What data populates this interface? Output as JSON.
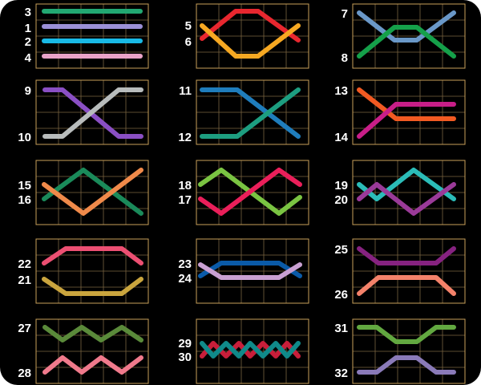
{
  "palette": {
    "background": "#000000",
    "frame": "#c9a05a",
    "grid": "#7a6440",
    "label": "#ffffff"
  },
  "panels": [
    {
      "id": "p1",
      "labels": [
        "3",
        "1",
        "2",
        "4"
      ],
      "lines": [
        {
          "label": "3",
          "color": "#22a872",
          "levels": [
            0,
            0,
            0,
            0,
            0,
            0
          ]
        },
        {
          "label": "1",
          "color": "#9b8fd6",
          "levels": [
            1,
            1,
            1,
            1,
            1,
            1
          ]
        },
        {
          "label": "2",
          "color": "#19b9e6",
          "levels": [
            2,
            2,
            2,
            2,
            2,
            2
          ]
        },
        {
          "label": "4",
          "color": "#e9a3c8",
          "levels": [
            3,
            3,
            3,
            3,
            3,
            3
          ]
        }
      ]
    },
    {
      "id": "p2",
      "labels": [
        "5",
        "6"
      ],
      "lines": [
        {
          "label": "5",
          "color": "#e8272f",
          "levels": [
            1,
            2,
            3,
            3,
            2,
            1
          ],
          "levels_top": [
            2,
            1,
            0,
            0,
            1,
            2
          ]
        },
        {
          "label": "6",
          "color": "#f6a822",
          "levels": [
            2,
            1,
            0,
            0,
            1,
            2
          ]
        }
      ]
    },
    {
      "id": "p3",
      "labels": [
        "7",
        "8"
      ],
      "lines": [
        {
          "label": "7",
          "color": "#6a98c8",
          "levels": [
            0,
            1,
            2,
            2,
            1,
            0
          ]
        },
        {
          "label": "8",
          "color": "#15a04a",
          "levels": [
            2,
            1,
            0,
            0,
            1,
            2
          ]
        }
      ]
    },
    {
      "id": "p4",
      "labels": [
        "9",
        "10"
      ],
      "lines": [
        {
          "label": "9",
          "color": "#8a4fc4",
          "levels": [
            0,
            0,
            1,
            2,
            2
          ]
        },
        {
          "label": "10",
          "color": "#b8bcbc",
          "levels": [
            2,
            2,
            1,
            0,
            0
          ]
        }
      ]
    },
    {
      "id": "p5",
      "labels": [
        "11",
        "12"
      ],
      "lines": [
        {
          "label": "11",
          "color": "#1f7dbc",
          "levels": [
            0,
            0,
            0,
            1,
            2
          ]
        },
        {
          "label": "12",
          "color": "#1d9e80",
          "levels": [
            2,
            2,
            2,
            1,
            0
          ]
        }
      ]
    },
    {
      "id": "p6",
      "labels": [
        "13",
        "14"
      ],
      "lines": [
        {
          "label": "13",
          "color": "#f25a22",
          "levels": [
            0,
            1,
            1,
            1,
            1
          ]
        },
        {
          "label": "14",
          "color": "#c81e88",
          "levels": [
            2,
            1,
            1,
            1,
            1
          ]
        }
      ]
    },
    {
      "id": "p7",
      "labels": [
        "15",
        "16"
      ],
      "lines": [
        {
          "label": "15",
          "color": "#1a8a5a",
          "levels": [
            1,
            0,
            1,
            2
          ]
        },
        {
          "label": "16",
          "color": "#f08a4a",
          "levels": [
            0,
            1,
            0,
            -1
          ]
        }
      ]
    },
    {
      "id": "p8",
      "labels": [
        "18",
        "17"
      ],
      "lines": [
        {
          "label": "18",
          "color": "#7ac442",
          "levels": [
            0,
            1,
            0,
            1
          ]
        },
        {
          "label": "17",
          "color": "#ea1f5a",
          "levels": [
            1,
            0,
            1,
            0
          ]
        }
      ]
    },
    {
      "id": "p9",
      "labels": [
        "19",
        "20"
      ],
      "lines": [
        {
          "label": "19",
          "color": "#2bbcb8",
          "levels": [
            0,
            1,
            0,
            1
          ]
        },
        {
          "label": "20",
          "color": "#9a3a98",
          "levels": [
            1,
            0,
            1,
            0
          ]
        }
      ]
    },
    {
      "id": "p10",
      "labels": [
        "22",
        "21"
      ],
      "lines": [
        {
          "label": "22",
          "color": "#ec4f72",
          "levels": [
            1,
            0,
            0,
            0,
            1
          ]
        },
        {
          "label": "21",
          "color": "#caa53e",
          "levels": [
            1,
            2,
            2,
            2,
            1
          ]
        }
      ]
    },
    {
      "id": "p11",
      "labels": [
        "23",
        "24"
      ],
      "lines": [
        {
          "label": "23",
          "color": "#0a5aa8",
          "levels": [
            0,
            1,
            1,
            1,
            0
          ]
        },
        {
          "label": "24",
          "color": "#c9a0d2",
          "levels": [
            1,
            0,
            0,
            0,
            1
          ]
        }
      ]
    },
    {
      "id": "p12",
      "labels": [
        "25",
        "26"
      ],
      "lines": [
        {
          "label": "25",
          "color": "#862280",
          "levels": [
            0,
            1,
            1,
            1,
            0
          ]
        },
        {
          "label": "26",
          "color": "#f4826a",
          "levels": [
            2,
            1,
            1,
            1,
            2
          ]
        }
      ]
    },
    {
      "id": "p13",
      "labels": [
        "27",
        "28"
      ],
      "lines": [
        {
          "label": "27",
          "color": "#5a8a3a",
          "levels": [
            0,
            1,
            0,
            1,
            0,
            1
          ]
        },
        {
          "label": "28",
          "color": "#f07a8c",
          "levels": [
            1,
            0,
            1,
            0,
            1,
            0
          ]
        }
      ]
    },
    {
      "id": "p14",
      "labels": [
        "29",
        "30"
      ],
      "lines": [
        {
          "label": "29",
          "color": "#c81e3a",
          "levels": [
            1,
            0,
            1,
            0,
            1,
            0,
            1,
            0,
            1
          ]
        },
        {
          "label": "30",
          "color": "#108a8a",
          "levels": [
            0,
            1,
            0,
            1,
            0,
            1,
            0,
            1,
            0
          ]
        }
      ]
    },
    {
      "id": "p15",
      "labels": [
        "31",
        "32"
      ],
      "lines": [
        {
          "label": "31",
          "color": "#62a840",
          "levels": [
            0,
            0,
            1,
            1,
            0,
            0
          ]
        },
        {
          "label": "32",
          "color": "#8a7ab8",
          "levels": [
            2,
            2,
            1,
            1,
            2,
            2
          ]
        }
      ]
    }
  ]
}
